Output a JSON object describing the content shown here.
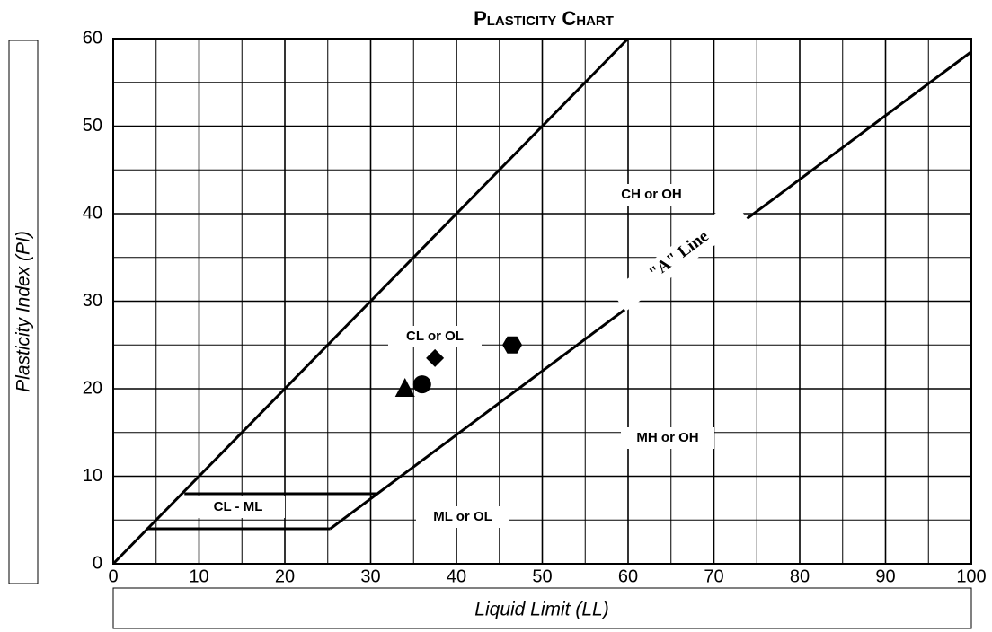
{
  "chart_data": {
    "type": "scatter",
    "title": "Plasticity Chart",
    "x_label": "Liquid Limit (LL)",
    "y_label": "Plasticity Index (PI)",
    "xlim": [
      0,
      100
    ],
    "xticks": [
      0,
      10,
      20,
      30,
      40,
      50,
      60,
      70,
      80,
      90,
      100
    ],
    "ylim": [
      0,
      60
    ],
    "yticks": [
      0,
      10,
      20,
      30,
      40,
      50,
      60
    ],
    "xminor": [
      5,
      15,
      25,
      35,
      45,
      55,
      65,
      75,
      85,
      95
    ],
    "yminor": [
      5,
      15,
      25,
      35,
      45,
      55
    ],
    "grid": true,
    "lines": [
      {
        "x": [
          0,
          60
        ],
        "values": [
          0,
          60
        ]
      },
      {
        "name": "\"A\" Line",
        "x": [
          25.3,
          100
        ],
        "values": [
          4,
          58.5
        ]
      },
      {
        "x": [
          8.3,
          30.7
        ],
        "values": [
          8,
          8
        ]
      },
      {
        "x": [
          3.9,
          25.3
        ],
        "values": [
          4,
          4
        ]
      }
    ],
    "points": {
      "x": [
        34,
        36,
        37.5,
        46.5
      ],
      "values": [
        20,
        20.5,
        23.5,
        25
      ],
      "markers": [
        "triangle",
        "circle",
        "diamond",
        "hexagon"
      ],
      "color": "#000000"
    },
    "annotations": [
      "CH or OH",
      "CL or OL",
      "MH or OH",
      "ML or OL",
      "CL - ML"
    ]
  }
}
